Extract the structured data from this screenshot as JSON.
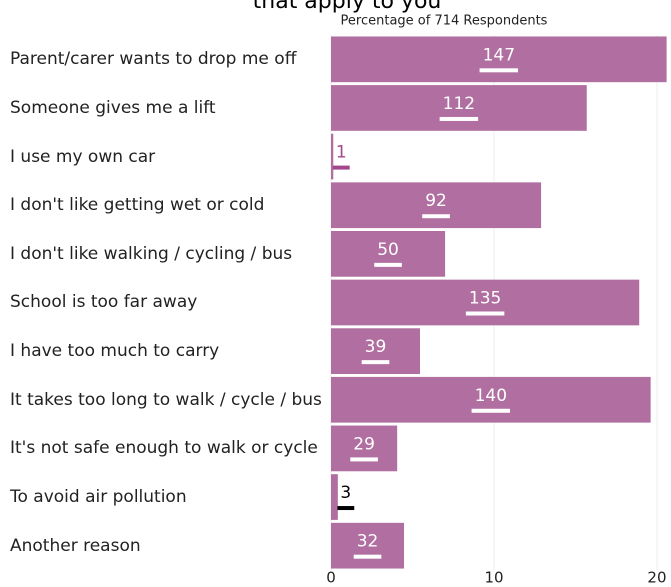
{
  "chart_data": {
    "type": "barh",
    "title": "that apply to you",
    "subtitle": "Percentage of 714 Respondents",
    "categories": [
      "Parent/carer wants to drop me off",
      "Someone gives me a lift",
      "I use my own car",
      "I don't like getting wet or cold",
      "I don't like walking / cycling / bus",
      "School is too far away",
      "I have too much to carry",
      "It takes too long to walk / cycle / bus",
      "It's not safe enough to walk or cycle",
      "To avoid air pollution",
      "Another reason"
    ],
    "values": [
      20.59,
      15.69,
      0.14,
      12.89,
      7.0,
      18.91,
      5.46,
      19.61,
      4.06,
      0.42,
      4.48
    ],
    "value_labels": [
      "147",
      "112",
      "1",
      "92",
      "50",
      "135",
      "39",
      "140",
      "29",
      "3",
      "32"
    ],
    "label_colors": [
      "#ffffff",
      "#ffffff",
      "#a2488a",
      "#ffffff",
      "#ffffff",
      "#ffffff",
      "#ffffff",
      "#ffffff",
      "#ffffff",
      "#000000",
      "#ffffff"
    ],
    "color": "#b06fa0",
    "xlim": [
      0,
      20.86
    ],
    "xticks": [
      0,
      10,
      20
    ],
    "grid": true
  }
}
